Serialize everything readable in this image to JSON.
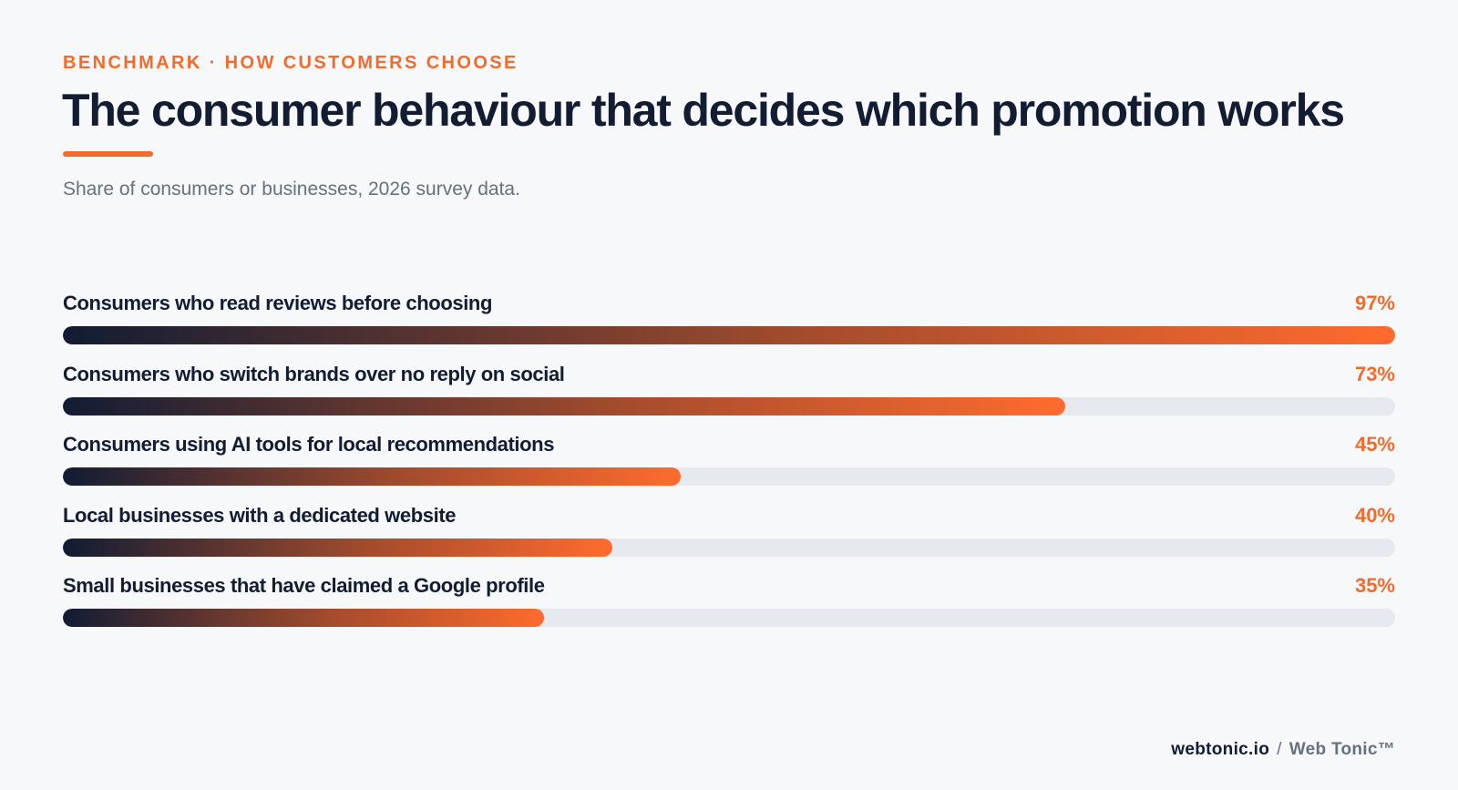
{
  "eyebrow": "BENCHMARK · HOW CUSTOMERS CHOOSE",
  "title": "The consumer behaviour that decides which promotion works",
  "subtitle": "Share of consumers or businesses, 2026 survey data.",
  "colors": {
    "accent": "#f36b2c",
    "ink": "#121c33",
    "muted": "#66707f",
    "track": "#e6e9ee",
    "background": "#f6f8fa"
  },
  "chart_data": {
    "type": "bar",
    "orientation": "horizontal",
    "categories": [
      "Consumers who read reviews before choosing",
      "Consumers who switch brands over no reply on social",
      "Consumers using AI tools for local recommendations",
      "Local businesses with a dedicated website",
      "Small businesses that have claimed a Google profile"
    ],
    "values": [
      97,
      73,
      45,
      40,
      35
    ],
    "value_labels": [
      "97%",
      "73%",
      "45%",
      "40%",
      "35%"
    ],
    "xlim": [
      0,
      97
    ],
    "grid": false,
    "legend": "none"
  },
  "footer": {
    "domain": "webtonic.io",
    "separator": "/",
    "brand": "Web Tonic™"
  }
}
